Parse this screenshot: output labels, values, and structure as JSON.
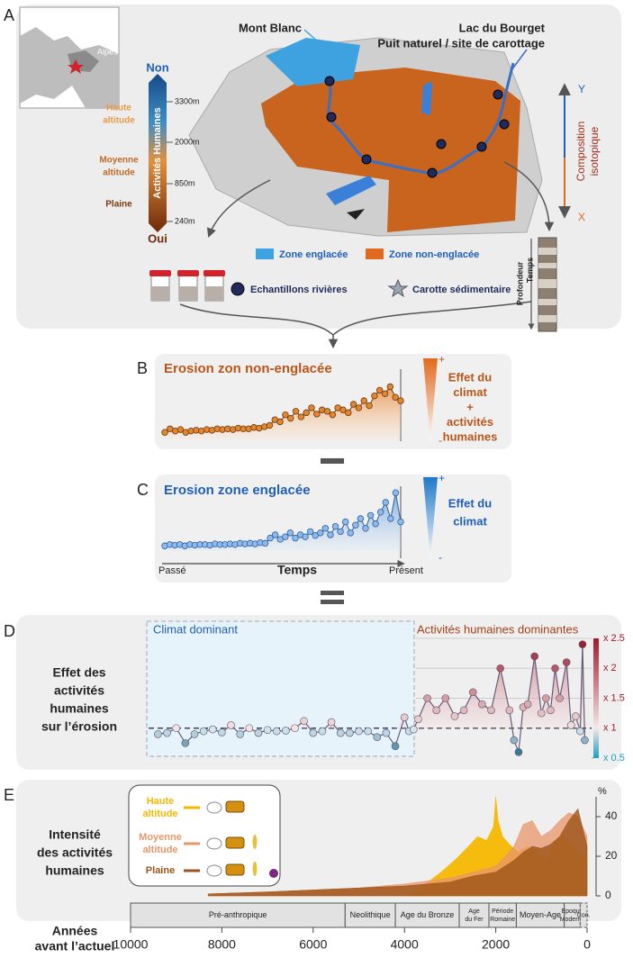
{
  "panels": {
    "A": {
      "letter": "A",
      "inset_label": "Alpes",
      "mont_blanc": "Mont Blanc",
      "lake": [
        "Lac du Bourget",
        "Puit naturel / site de carottage"
      ],
      "scale": {
        "top": "Non",
        "bottom": "Oui",
        "title": "Activités Humaines",
        "zones": [
          {
            "lines": [
              "Haute",
              "altitude"
            ]
          },
          {
            "lines": [
              "Moyenne",
              "altitude"
            ]
          },
          {
            "lines": [
              "Plaine"
            ]
          }
        ],
        "elevations": [
          "3300m",
          "2000m",
          "850m",
          "240m"
        ]
      },
      "isotope": {
        "y": "Y",
        "x": "X",
        "title": [
          "Composition",
          "isotopique"
        ]
      },
      "legend": [
        "Zone englacée",
        "Zone non-englacée",
        "Echantillons rivières",
        "Carotte sédimentaire"
      ],
      "core": [
        "Profondeur",
        "Temps"
      ]
    },
    "B": {
      "letter": "B",
      "title": "Erosion zon non-englacée",
      "effect": [
        "Effet du",
        "climat",
        "+",
        "activités",
        "humaines"
      ],
      "plus": "+",
      "minus": "-",
      "values": [
        0.1,
        0.15,
        0.12,
        0.14,
        0.1,
        0.12,
        0.13,
        0.12,
        0.14,
        0.13,
        0.15,
        0.14,
        0.15,
        0.14,
        0.16,
        0.15,
        0.15,
        0.17,
        0.16,
        0.18,
        0.2,
        0.28,
        0.25,
        0.35,
        0.3,
        0.4,
        0.32,
        0.38,
        0.45,
        0.36,
        0.42,
        0.4,
        0.35,
        0.45,
        0.42,
        0.38,
        0.5,
        0.45,
        0.55,
        0.48,
        0.62,
        0.7,
        0.65,
        0.75,
        0.6,
        0.55
      ]
    },
    "C": {
      "letter": "C",
      "title": "Erosion zone englacée",
      "effect": [
        "Effet du",
        "climat"
      ],
      "plus": "+",
      "minus": "-",
      "axis": {
        "start": "Passé",
        "label": "Temps",
        "end": "Présent"
      },
      "values": [
        0.08,
        0.1,
        0.09,
        0.1,
        0.08,
        0.1,
        0.09,
        0.1,
        0.1,
        0.09,
        0.11,
        0.1,
        0.1,
        0.11,
        0.1,
        0.12,
        0.11,
        0.12,
        0.11,
        0.13,
        0.12,
        0.2,
        0.25,
        0.18,
        0.22,
        0.28,
        0.2,
        0.25,
        0.22,
        0.3,
        0.24,
        0.28,
        0.35,
        0.25,
        0.38,
        0.3,
        0.45,
        0.28,
        0.4,
        0.5,
        0.35,
        0.55,
        0.42,
        0.6,
        0.75,
        0.5,
        0.9,
        0.45
      ]
    },
    "D": {
      "letter": "D",
      "label": [
        "Effet des",
        "activités",
        "humaines",
        "sur l’érosion"
      ],
      "regions": [
        "Climat dominant",
        "Activités humaines dominantes"
      ],
      "ylim": [
        0.5,
        2.5
      ],
      "yticks": [
        {
          "value": 2.5,
          "label": "x 2.5"
        },
        {
          "value": 2,
          "label": "x 2"
        },
        {
          "value": 1.5,
          "label": "x 1.5"
        },
        {
          "value": 1,
          "label": "x 1"
        },
        {
          "value": 0.5,
          "label": "x 0.5"
        }
      ],
      "x": [
        9400,
        9200,
        9000,
        8800,
        8600,
        8400,
        8200,
        8000,
        7800,
        7600,
        7400,
        7200,
        7000,
        6800,
        6600,
        6400,
        6200,
        6000,
        5800,
        5600,
        5400,
        5200,
        5000,
        4800,
        4600,
        4400,
        4200,
        4000,
        3900,
        3800,
        3700,
        3500,
        3300,
        3100,
        2900,
        2700,
        2500,
        2300,
        2100,
        1900,
        1700,
        1600,
        1500,
        1400,
        1300,
        1150,
        1000,
        900,
        800,
        700,
        600,
        450,
        350,
        250,
        150,
        100,
        50
      ],
      "values": [
        0.9,
        0.92,
        1.0,
        0.75,
        0.9,
        0.95,
        0.98,
        0.93,
        1.05,
        0.9,
        1.0,
        0.92,
        0.97,
        0.95,
        0.96,
        1.0,
        1.12,
        0.92,
        0.95,
        1.1,
        0.92,
        0.92,
        0.95,
        0.95,
        0.85,
        0.92,
        0.7,
        1.18,
        0.95,
        0.98,
        1.15,
        1.5,
        1.3,
        1.5,
        1.2,
        1.3,
        1.6,
        1.4,
        1.3,
        2.0,
        1.3,
        0.8,
        0.6,
        1.35,
        1.4,
        2.2,
        1.25,
        1.5,
        1.3,
        2.0,
        1.5,
        2.1,
        1.05,
        1.2,
        0.95,
        2.4,
        0.8
      ]
    },
    "E": {
      "letter": "E",
      "label": [
        "Intensité",
        "des activités",
        "humaines"
      ],
      "unit": "%",
      "ylim": [
        0,
        50
      ],
      "yticks": [
        0,
        20,
        40
      ],
      "xlim": [
        10000,
        0
      ],
      "xticks": [
        10000,
        8000,
        6000,
        4000,
        2000,
        0
      ],
      "xlabel": [
        "Années",
        "avant l’actuel"
      ],
      "series": [
        {
          "lines": [
            "Haute",
            "altitude"
          ],
          "color": "#f5b800",
          "x": [
            4000,
            3600,
            3200,
            2900,
            2600,
            2400,
            2200,
            2050,
            2000,
            1950,
            1850,
            1700,
            1500,
            1300,
            1100,
            900,
            700,
            500,
            300,
            100,
            0
          ],
          "values": [
            0,
            5,
            12,
            18,
            25,
            30,
            28,
            35,
            50,
            38,
            30,
            26,
            22,
            25,
            22,
            18,
            28,
            30,
            25,
            20,
            20
          ]
        },
        {
          "lines": [
            "Moyenne",
            "altitude"
          ],
          "color": "#e8956a",
          "x": [
            8300,
            7000,
            6000,
            5000,
            4000,
            3000,
            2500,
            2000,
            1600,
            1400,
            1200,
            1000,
            800,
            600,
            400,
            200,
            0
          ],
          "values": [
            1,
            2,
            3,
            4,
            6,
            9,
            12,
            15,
            25,
            36,
            38,
            30,
            33,
            38,
            42,
            40,
            30
          ]
        },
        {
          "lines": [
            "Plaine"
          ],
          "color": "#9c5418",
          "x": [
            8300,
            7000,
            6000,
            5000,
            4000,
            3000,
            2500,
            2000,
            1600,
            1400,
            1200,
            1000,
            800,
            600,
            400,
            200,
            0
          ],
          "values": [
            1,
            2,
            3,
            4,
            5,
            7,
            10,
            12,
            18,
            22,
            25,
            24,
            26,
            30,
            38,
            44,
            25
          ]
        }
      ],
      "periods": [
        {
          "lines": [
            "Pré-anthropique"
          ],
          "range": [
            10000,
            5300
          ]
        },
        {
          "lines": [
            "Neolithique"
          ],
          "range": [
            5300,
            4200
          ]
        },
        {
          "lines": [
            "Age du Bronze"
          ],
          "range": [
            4200,
            2800
          ]
        },
        {
          "lines": [
            "Age",
            "du Fer"
          ],
          "range": [
            2800,
            2150
          ]
        },
        {
          "lines": [
            "Période",
            "Romaine"
          ],
          "range": [
            2150,
            1550
          ]
        },
        {
          "lines": [
            "Moyen-Age"
          ],
          "range": [
            1550,
            500
          ]
        },
        {
          "lines": [
            "Epoque",
            "Moderne"
          ],
          "range": [
            500,
            150
          ]
        },
        {
          "lines": [
            "Con."
          ],
          "range": [
            150,
            0
          ]
        }
      ]
    }
  }
}
